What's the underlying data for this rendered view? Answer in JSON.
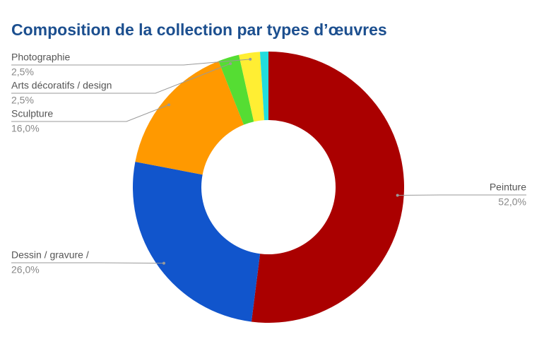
{
  "chart_data": {
    "type": "pie",
    "title": "Composition de la collection par types d’œuvres",
    "categories": [
      "Peinture",
      "Dessin / gravure /",
      "Sculpture",
      "Arts décoratifs / design",
      "Photographie",
      null
    ],
    "values": [
      52,
      26,
      16,
      2.5,
      2.5,
      1
    ],
    "value_labels": [
      "52,0%",
      "26,0%",
      "16,0%",
      "2,5%",
      "2,5%",
      null
    ],
    "colors": [
      "#aa0000",
      "#1155cc",
      "#ff9900",
      "#55dd33",
      "#ffee33",
      "#22dddd"
    ]
  }
}
